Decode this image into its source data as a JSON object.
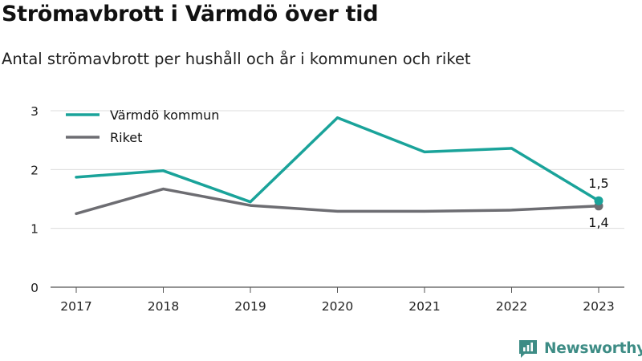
{
  "header": {
    "title": "Strömavbrott i Värmdö över tid",
    "subtitle": "Antal strömavbrott per hushåll och år i kommunen och riket"
  },
  "brand": {
    "name": "Newsworthy",
    "icon": "newsworthy-logo-icon",
    "color": "#3d8c85"
  },
  "chart_data": {
    "type": "line",
    "x": [
      "2017",
      "2018",
      "2019",
      "2020",
      "2021",
      "2022",
      "2023"
    ],
    "ylim": [
      0,
      3
    ],
    "yticks": [
      0,
      1,
      2,
      3
    ],
    "grid": true,
    "legend_position": "top-left",
    "series": [
      {
        "name": "Värmdö kommun",
        "color": "#1aa39a",
        "values": [
          1.87,
          1.98,
          1.45,
          2.88,
          2.3,
          2.36,
          1.47
        ],
        "end_label": "1,5"
      },
      {
        "name": "Riket",
        "color": "#6d6d72",
        "values": [
          1.25,
          1.67,
          1.39,
          1.29,
          1.29,
          1.31,
          1.38
        ],
        "end_label": "1,4"
      }
    ]
  }
}
